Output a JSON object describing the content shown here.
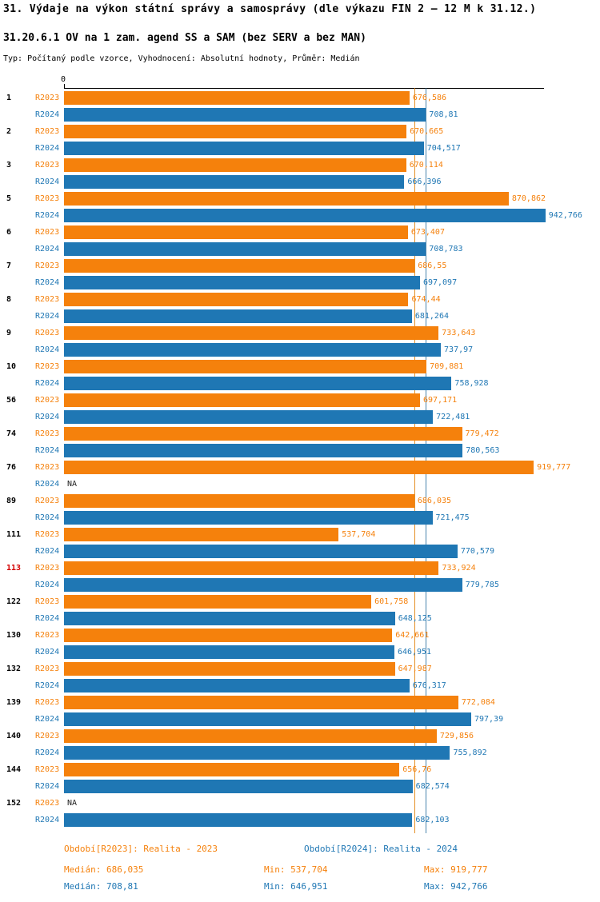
{
  "title": "31. Výdaje na výkon státní správy a samosprávy (dle výkazu FIN 2 – 12 M k 31.12.)",
  "subtitle": "31.20.6.1 OV na 1 zam. agend SS a SAM (bez SERV a bez MAN)",
  "meta": "Typ: Počítaný podle vzorce, Vyhodnocení: Absolutní hodnoty, Průměr: Medián",
  "axis": {
    "zero": "0"
  },
  "colors": {
    "r2023": "#f5810c",
    "r2024": "#1f77b4",
    "highlight": "#d40000"
  },
  "chart_data": {
    "type": "bar",
    "orientation": "horizontal",
    "xlim": [
      0,
      940
    ],
    "series_labels": [
      "R2023",
      "R2024"
    ],
    "medians": {
      "r2023": 686.035,
      "r2024": 708.81
    },
    "groups": [
      {
        "id": "1",
        "r2023": 676.586,
        "r2023_label": "676,586",
        "r2024": 708.81,
        "r2024_label": "708,81",
        "highlight": false
      },
      {
        "id": "2",
        "r2023": 670.665,
        "r2023_label": "670,665",
        "r2024": 704.517,
        "r2024_label": "704,517",
        "highlight": false
      },
      {
        "id": "3",
        "r2023": 670.114,
        "r2023_label": "670,114",
        "r2024": 666.396,
        "r2024_label": "666,396",
        "highlight": false
      },
      {
        "id": "5",
        "r2023": 870.862,
        "r2023_label": "870,862",
        "r2024": 942.766,
        "r2024_label": "942,766",
        "highlight": false
      },
      {
        "id": "6",
        "r2023": 673.407,
        "r2023_label": "673,407",
        "r2024": 708.783,
        "r2024_label": "708,783",
        "highlight": false
      },
      {
        "id": "7",
        "r2023": 686.55,
        "r2023_label": "686,55",
        "r2024": 697.097,
        "r2024_label": "697,097",
        "highlight": false
      },
      {
        "id": "8",
        "r2023": 674.44,
        "r2023_label": "674,44",
        "r2024": 681.264,
        "r2024_label": "681,264",
        "highlight": false
      },
      {
        "id": "9",
        "r2023": 733.643,
        "r2023_label": "733,643",
        "r2024": 737.97,
        "r2024_label": "737,97",
        "highlight": false
      },
      {
        "id": "10",
        "r2023": 709.881,
        "r2023_label": "709,881",
        "r2024": 758.928,
        "r2024_label": "758,928",
        "highlight": false
      },
      {
        "id": "56",
        "r2023": 697.171,
        "r2023_label": "697,171",
        "r2024": 722.481,
        "r2024_label": "722,481",
        "highlight": false
      },
      {
        "id": "74",
        "r2023": 779.472,
        "r2023_label": "779,472",
        "r2024": 780.563,
        "r2024_label": "780,563",
        "highlight": false
      },
      {
        "id": "76",
        "r2023": 919.777,
        "r2023_label": "919,777",
        "r2024": null,
        "r2024_label": "NA",
        "highlight": false
      },
      {
        "id": "89",
        "r2023": 686.035,
        "r2023_label": "686,035",
        "r2024": 721.475,
        "r2024_label": "721,475",
        "highlight": false
      },
      {
        "id": "111",
        "r2023": 537.704,
        "r2023_label": "537,704",
        "r2024": 770.579,
        "r2024_label": "770,579",
        "highlight": false
      },
      {
        "id": "113",
        "r2023": 733.924,
        "r2023_label": "733,924",
        "r2024": 779.785,
        "r2024_label": "779,785",
        "highlight": true
      },
      {
        "id": "122",
        "r2023": 601.758,
        "r2023_label": "601,758",
        "r2024": 648.125,
        "r2024_label": "648,125",
        "highlight": false
      },
      {
        "id": "130",
        "r2023": 642.661,
        "r2023_label": "642,661",
        "r2024": 646.951,
        "r2024_label": "646,951",
        "highlight": false
      },
      {
        "id": "132",
        "r2023": 647.987,
        "r2023_label": "647,987",
        "r2024": 676.317,
        "r2024_label": "676,317",
        "highlight": false
      },
      {
        "id": "139",
        "r2023": 772.084,
        "r2023_label": "772,084",
        "r2024": 797.39,
        "r2024_label": "797,39",
        "highlight": false
      },
      {
        "id": "140",
        "r2023": 729.856,
        "r2023_label": "729,856",
        "r2024": 755.892,
        "r2024_label": "755,892",
        "highlight": false
      },
      {
        "id": "144",
        "r2023": 656.76,
        "r2023_label": "656,76",
        "r2024": 682.574,
        "r2024_label": "682,574",
        "highlight": false
      },
      {
        "id": "152",
        "r2023": null,
        "r2023_label": "NA",
        "r2024": 682.103,
        "r2024_label": "682,103",
        "highlight": false
      }
    ]
  },
  "legend": {
    "r2023": "Období[R2023]: Realita - 2023",
    "r2024": "Období[R2024]: Realita - 2024"
  },
  "stats": {
    "median_r2023": "Medián: 686,035",
    "median_r2024": "Medián: 708,81",
    "min_r2023": "Min: 537,704",
    "min_r2024": "Min: 646,951",
    "max_r2023": "Max: 919,777",
    "max_r2024": "Max: 942,766"
  }
}
